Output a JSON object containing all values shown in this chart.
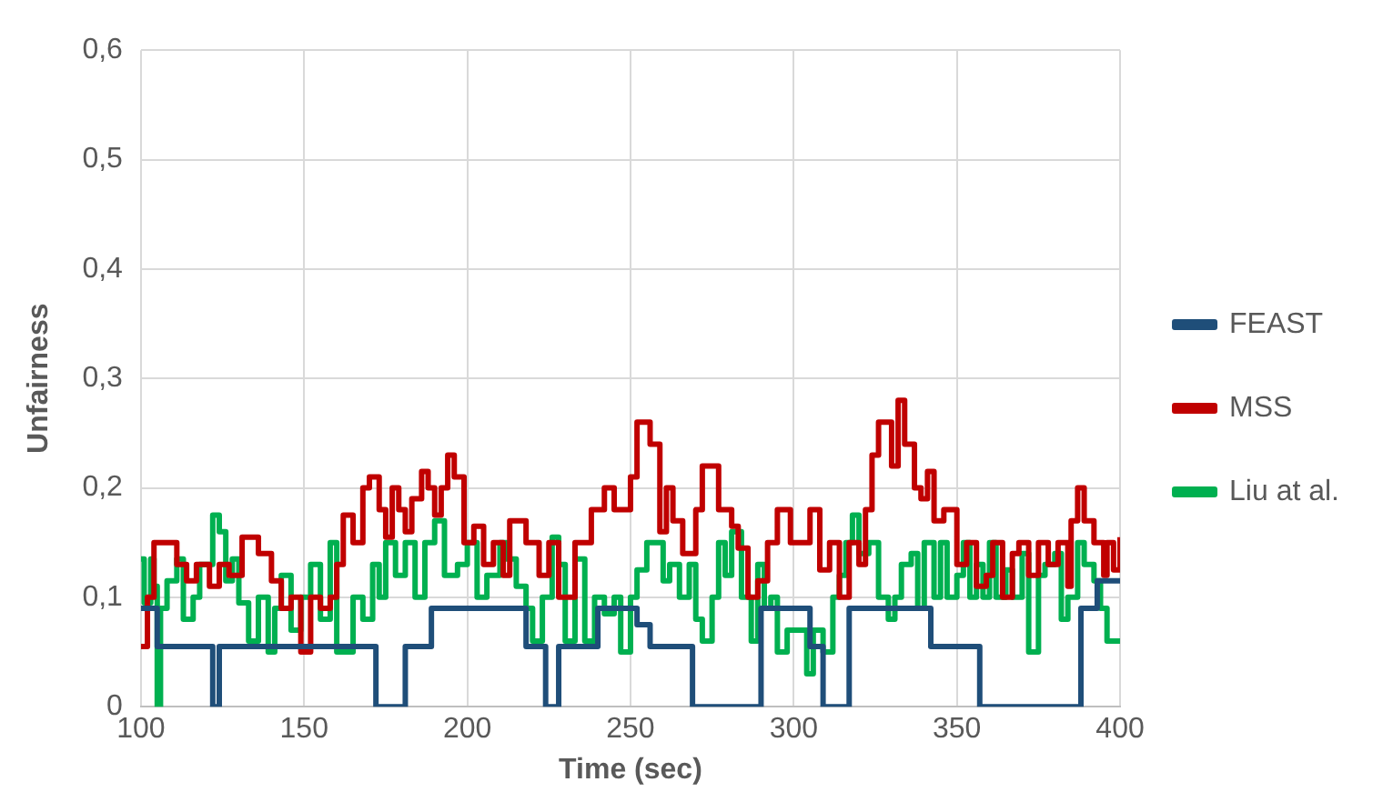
{
  "chart_data": {
    "type": "step",
    "xlabel": "Time (sec)",
    "ylabel": "Unfairness",
    "xlim": [
      100,
      400
    ],
    "xticks": [
      100,
      150,
      200,
      250,
      300,
      350,
      400
    ],
    "ylim": [
      0,
      0.6
    ],
    "yticks": [
      {
        "value": 0,
        "label": "0"
      },
      {
        "value": 0.1,
        "label": "0,1"
      },
      {
        "value": 0.2,
        "label": "0,2"
      },
      {
        "value": 0.3,
        "label": "0,3"
      },
      {
        "value": 0.4,
        "label": "0,4"
      },
      {
        "value": 0.5,
        "label": "0,5"
      },
      {
        "value": 0.6,
        "label": "0,6"
      }
    ],
    "grid": true,
    "legend": "right",
    "marker": "none",
    "line_style": "solid",
    "series": [
      {
        "name": "FEAST",
        "color": "#1f4e79",
        "x": [
          100,
          105,
          122,
          124,
          172,
          181,
          189,
          218,
          224,
          228,
          240,
          252,
          256,
          269,
          290,
          305,
          309,
          317,
          342,
          357,
          388,
          393,
          400
        ],
        "values": [
          0.09,
          0.055,
          0,
          0.055,
          0,
          0.055,
          0.09,
          0.055,
          0,
          0.055,
          0.09,
          0.075,
          0.055,
          0,
          0.09,
          0.055,
          0,
          0.09,
          0.055,
          0,
          0.09,
          0.115,
          0.115
        ]
      },
      {
        "name": "MSS",
        "color": "#c00000",
        "x": [
          100,
          102,
          104,
          111,
          114,
          117,
          121,
          124,
          127,
          131,
          136,
          140,
          143,
          146,
          149,
          152,
          155,
          158,
          160,
          162,
          165,
          168,
          170,
          173,
          175,
          177,
          179,
          181,
          183,
          186,
          188,
          190,
          192,
          194,
          196,
          199,
          202,
          205,
          208,
          211,
          213,
          218,
          222,
          225,
          228,
          233,
          238,
          242,
          245,
          250,
          252,
          256,
          259,
          261,
          263,
          266,
          270,
          272,
          277,
          281,
          283,
          286,
          289,
          292,
          295,
          299,
          305,
          308,
          311,
          314,
          317,
          320,
          322,
          324,
          326,
          330,
          332,
          334,
          337,
          339,
          341,
          343,
          346,
          350,
          353,
          356,
          359,
          361,
          364,
          367,
          369,
          372,
          375,
          378,
          381,
          384,
          385,
          387,
          389,
          392,
          395,
          396,
          398,
          400
        ],
        "values": [
          0.055,
          0.1,
          0.15,
          0.13,
          0.115,
          0.13,
          0.11,
          0.13,
          0.12,
          0.155,
          0.14,
          0.115,
          0.09,
          0.1,
          0.05,
          0.1,
          0.09,
          0.1,
          0.13,
          0.175,
          0.15,
          0.2,
          0.21,
          0.18,
          0.155,
          0.2,
          0.18,
          0.16,
          0.19,
          0.215,
          0.2,
          0.175,
          0.2,
          0.23,
          0.21,
          0.15,
          0.165,
          0.13,
          0.15,
          0.12,
          0.17,
          0.15,
          0.12,
          0.15,
          0.1,
          0.15,
          0.18,
          0.2,
          0.18,
          0.21,
          0.26,
          0.24,
          0.16,
          0.2,
          0.17,
          0.14,
          0.18,
          0.22,
          0.18,
          0.165,
          0.145,
          0.1,
          0.115,
          0.15,
          0.18,
          0.15,
          0.18,
          0.125,
          0.15,
          0.1,
          0.15,
          0.13,
          0.18,
          0.23,
          0.26,
          0.22,
          0.28,
          0.24,
          0.2,
          0.19,
          0.215,
          0.17,
          0.18,
          0.13,
          0.15,
          0.11,
          0.12,
          0.15,
          0.1,
          0.14,
          0.15,
          0.12,
          0.15,
          0.13,
          0.15,
          0.11,
          0.17,
          0.2,
          0.17,
          0.15,
          0.12,
          0.15,
          0.125,
          0.155
        ]
      },
      {
        "name": "Liu at al.",
        "color": "#00b050",
        "x": [
          100,
          101,
          103,
          104,
          105,
          106,
          108,
          111,
          113,
          116,
          118,
          122,
          124,
          126,
          128,
          130,
          133,
          136,
          139,
          141,
          143,
          146,
          149,
          152,
          155,
          158,
          160,
          165,
          168,
          171,
          173,
          175,
          178,
          181,
          184,
          187,
          190,
          193,
          197,
          200,
          203,
          206,
          210,
          212,
          215,
          218,
          220,
          223,
          226,
          228,
          230,
          233,
          236,
          239,
          242,
          245,
          247,
          250,
          252,
          255,
          260,
          262,
          265,
          268,
          270,
          272,
          275,
          277,
          279,
          281,
          284,
          287,
          289,
          291,
          293,
          295,
          298,
          304,
          306,
          309,
          312,
          314,
          316,
          318,
          320,
          323,
          326,
          329,
          331,
          333,
          336,
          338,
          340,
          343,
          345,
          347,
          350,
          352,
          354,
          356,
          358,
          360,
          362,
          365,
          367,
          370,
          372,
          375,
          377,
          380,
          382,
          384,
          387,
          389,
          392,
          394,
          396,
          400
        ],
        "values": [
          0.135,
          0.095,
          0.135,
          0.11,
          0,
          0.09,
          0.115,
          0.135,
          0.08,
          0.1,
          0.13,
          0.175,
          0.16,
          0.115,
          0.135,
          0.095,
          0.06,
          0.1,
          0.05,
          0.09,
          0.12,
          0.07,
          0.1,
          0.13,
          0.08,
          0.15,
          0.05,
          0.1,
          0.08,
          0.13,
          0.1,
          0.15,
          0.12,
          0.15,
          0.1,
          0.15,
          0.17,
          0.12,
          0.13,
          0.15,
          0.1,
          0.12,
          0.15,
          0.135,
          0.11,
          0.09,
          0.06,
          0.1,
          0.155,
          0.13,
          0.06,
          0.135,
          0.06,
          0.1,
          0.085,
          0.1,
          0.05,
          0.1,
          0.125,
          0.15,
          0.115,
          0.13,
          0.1,
          0.13,
          0.08,
          0.06,
          0.1,
          0.15,
          0.12,
          0.16,
          0.1,
          0.06,
          0.13,
          0.09,
          0.1,
          0.05,
          0.07,
          0.03,
          0.07,
          0.05,
          0.1,
          0.12,
          0.15,
          0.175,
          0.14,
          0.15,
          0.1,
          0.08,
          0.1,
          0.13,
          0.14,
          0.09,
          0.15,
          0.1,
          0.15,
          0.1,
          0.12,
          0.15,
          0.1,
          0.13,
          0.1,
          0.15,
          0.1,
          0.125,
          0.1,
          0.14,
          0.05,
          0.12,
          0.13,
          0.14,
          0.08,
          0.1,
          0.15,
          0.13,
          0.115,
          0.09,
          0.06,
          0.06
        ]
      }
    ]
  }
}
